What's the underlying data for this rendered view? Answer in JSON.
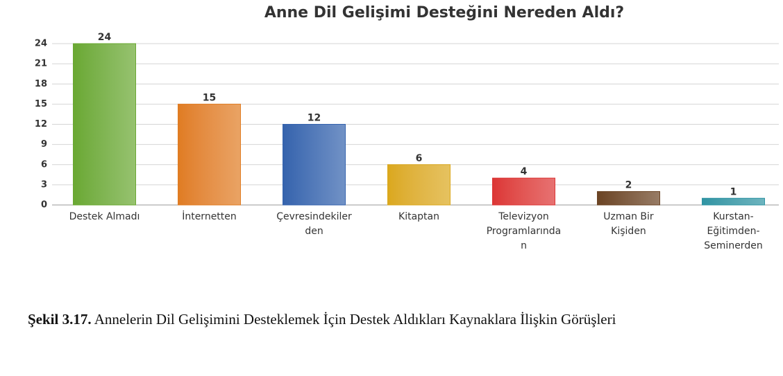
{
  "chart_data": {
    "type": "bar",
    "title": "Anne Dil Gelişimi Desteğini Nereden Aldı?",
    "categories": [
      "Destek Almadı",
      "İnternetten",
      "Çevresindekiler\nden",
      "Kitaptan",
      "Televizyon\nProgramlarında\nn",
      "Uzman Bir\nKişiden",
      "Kurstan-\nEğitimden-\nSeminerden"
    ],
    "values": [
      24,
      15,
      12,
      6,
      4,
      2,
      1
    ],
    "colors": [
      "#6aa832",
      "#e07c22",
      "#3563ad",
      "#dba81c",
      "#dc3535",
      "#6b4424",
      "#2f94a3"
    ],
    "ylim": [
      0,
      24
    ],
    "yticks": [
      0,
      3,
      6,
      9,
      12,
      15,
      18,
      21,
      24
    ],
    "grid": true
  },
  "caption": {
    "label": "Şekil 3.17.",
    "text": "Annelerin Dil Gelişimini Desteklemek İçin Destek Aldıkları Kaynaklara İlişkin Görüşleri"
  }
}
